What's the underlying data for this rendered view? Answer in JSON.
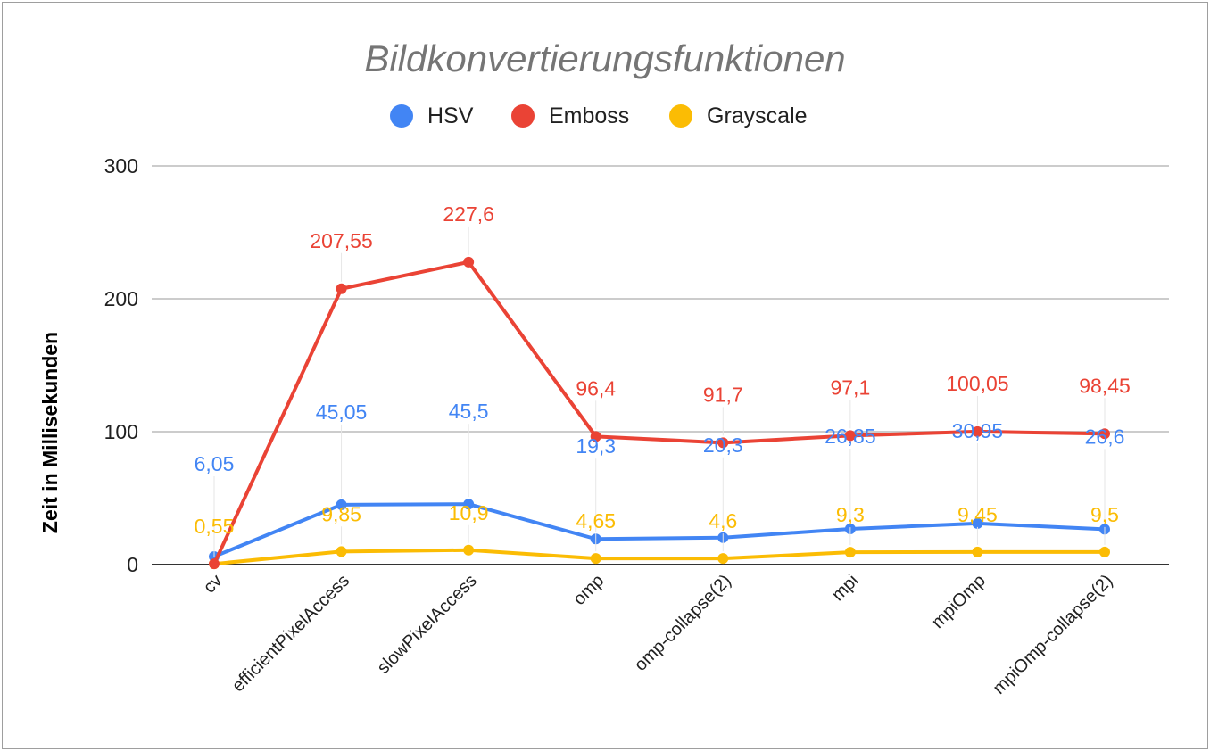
{
  "chart_data": {
    "type": "line",
    "title": "Bildkonvertierungsfunktionen",
    "xlabel": "",
    "ylabel": "Zeit in Millisekunden",
    "categories": [
      "cv",
      "efficientPixelAccess",
      "slowPixelAccess",
      "omp",
      "omp-collapse(2)",
      "mpi",
      "mpiOmp",
      "mpiOmp-collapse(2)"
    ],
    "ylim": [
      0,
      300
    ],
    "yticks": [
      "0",
      "100",
      "200",
      "300"
    ],
    "grid": true,
    "legend_position": "top",
    "series": [
      {
        "name": "HSV",
        "color": "#4285F4",
        "values": [
          6.05,
          45.05,
          45.5,
          19.3,
          20.3,
          26.85,
          30.95,
          26.6
        ],
        "labels": [
          "6,05",
          "45,05",
          "45,5",
          "19,3",
          "20,3",
          "26,85",
          "30,95",
          "26,6"
        ]
      },
      {
        "name": "Emboss",
        "color": "#EA4335",
        "values": [
          0.55,
          207.55,
          227.6,
          96.4,
          91.7,
          97.1,
          100.05,
          98.45
        ],
        "labels": [
          "",
          "207,55",
          "227,6",
          "96,4",
          "91,7",
          "97,1",
          "100,05",
          "98,45"
        ]
      },
      {
        "name": "Grayscale",
        "color": "#FBBC04",
        "values": [
          0.55,
          9.85,
          10.9,
          4.65,
          4.6,
          9.3,
          9.45,
          9.5
        ],
        "labels": [
          "0,55",
          "9,85",
          "10,9",
          "4,65",
          "4,6",
          "9,3",
          "9,45",
          "9,5"
        ]
      }
    ]
  }
}
